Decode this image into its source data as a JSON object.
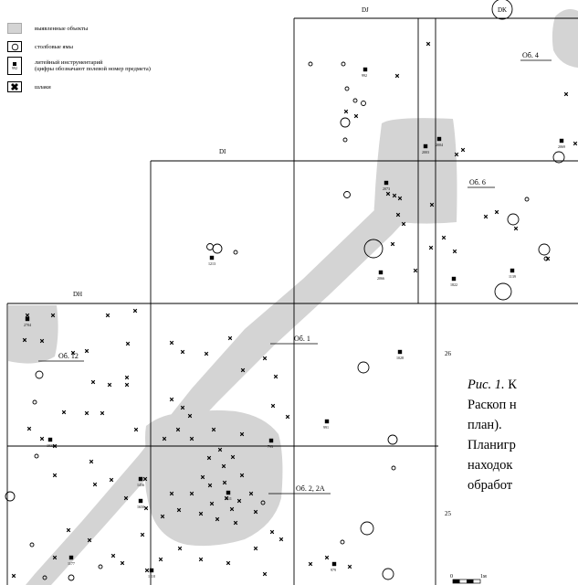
{
  "legend": {
    "items": [
      {
        "label": "выявленные объекты",
        "icon": "shaded-area-icon"
      },
      {
        "label": "столбовые ямы",
        "icon": "circle-icon"
      },
      {
        "label": "литейный инструментарий\n(цифры обозначают полевой номер предмета)",
        "icon": "square-icon",
        "sample_number": "992"
      },
      {
        "label": "шлаки",
        "icon": "cross-icon"
      }
    ]
  },
  "grid_labels": {
    "dj": "DJ",
    "dk": "DK",
    "di": "DI",
    "dh": "DH",
    "row26": "26",
    "row25": "25"
  },
  "objects": {
    "ob4": "Об. 4",
    "ob6": "Об. 6",
    "ob1": "Об. 1",
    "ob12": "Об. 12",
    "ob2": "Об. 2, 2А"
  },
  "find_numbers": [
    "992",
    "2004",
    "2003",
    "2069",
    "2073",
    "1213",
    "2066",
    "1822",
    "1139",
    "2704",
    "1028",
    "991",
    "1033",
    "793",
    "1456",
    "1650",
    "2011",
    "1177",
    "1118",
    "979"
  ],
  "scale": {
    "zero": "0",
    "unit": "1м"
  },
  "caption": {
    "fig": "Рис. 1.",
    "rest": " К",
    "lines": [
      "Раскоп н",
      "план).",
      "Планигр",
      "находок",
      "обработ"
    ]
  },
  "colors": {
    "shade": "#d4d4d4",
    "line": "#000000"
  }
}
